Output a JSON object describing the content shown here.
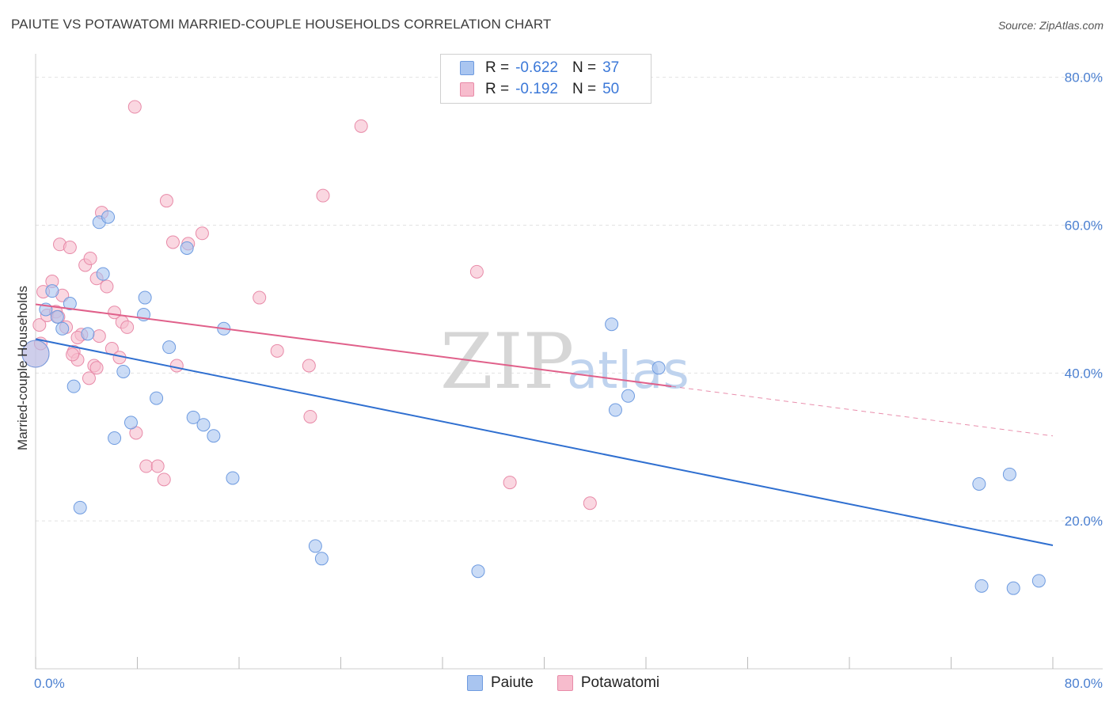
{
  "title": "PAIUTE VS POTAWATOMI MARRIED-COUPLE HOUSEHOLDS CORRELATION CHART",
  "source": "Source: ZipAtlas.com",
  "watermark": {
    "zip": "ZIP",
    "atlas": "atlas"
  },
  "legend": {
    "rows": [
      {
        "r_label": "R =",
        "r_value": "-0.622",
        "n_label": "N =",
        "n_value": "37",
        "color": "#a9c5f0",
        "border": "#6e9be0"
      },
      {
        "r_label": "R =",
        "r_value": "-0.192",
        "n_label": "N =",
        "n_value": "50",
        "color": "#f7bccd",
        "border": "#e88aa8"
      }
    ]
  },
  "bottom_legend": [
    {
      "label": "Paiute",
      "color": "#a9c5f0",
      "border": "#6e9be0"
    },
    {
      "label": "Potawatomi",
      "color": "#f7bccd",
      "border": "#e88aa8"
    }
  ],
  "chart_data": {
    "type": "scatter",
    "title": "PAIUTE VS POTAWATOMI MARRIED-COUPLE HOUSEHOLDS CORRELATION CHART",
    "xlabel": "",
    "ylabel": "Married-couple Households",
    "xlim": [
      0,
      80
    ],
    "ylim": [
      0,
      82
    ],
    "x_tick_labels": [
      "0.0%",
      "80.0%"
    ],
    "y_ticks": [
      20,
      40,
      60,
      80
    ],
    "y_tick_labels": [
      "20.0%",
      "40.0%",
      "60.0%",
      "80.0%"
    ],
    "grid": true,
    "series": [
      {
        "name": "Paiute",
        "color": "#a9c5f0",
        "edge": "#6e9be0",
        "line_color": "#2f6fd0",
        "trend": {
          "x": [
            0,
            80
          ],
          "y": [
            44.6,
            16.7
          ]
        },
        "points": [
          [
            0.0,
            42.6
          ],
          [
            0.8,
            48.6
          ],
          [
            1.3,
            51.1
          ],
          [
            1.7,
            47.6
          ],
          [
            2.1,
            46.0
          ],
          [
            2.7,
            49.4
          ],
          [
            3.0,
            38.2
          ],
          [
            3.5,
            21.8
          ],
          [
            4.1,
            45.3
          ],
          [
            5.0,
            60.4
          ],
          [
            5.3,
            53.4
          ],
          [
            5.7,
            61.1
          ],
          [
            6.2,
            31.2
          ],
          [
            6.9,
            40.2
          ],
          [
            7.5,
            33.3
          ],
          [
            8.5,
            47.9
          ],
          [
            8.6,
            50.2
          ],
          [
            9.5,
            36.6
          ],
          [
            10.5,
            43.5
          ],
          [
            11.9,
            56.9
          ],
          [
            12.4,
            34.0
          ],
          [
            13.2,
            33.0
          ],
          [
            14.0,
            31.5
          ],
          [
            14.8,
            46.0
          ],
          [
            15.5,
            25.8
          ],
          [
            22.0,
            16.6
          ],
          [
            22.5,
            14.9
          ],
          [
            34.8,
            13.2
          ],
          [
            45.3,
            46.6
          ],
          [
            45.6,
            35.0
          ],
          [
            46.6,
            36.9
          ],
          [
            49.0,
            40.7
          ],
          [
            74.2,
            25.0
          ],
          [
            74.4,
            11.2
          ],
          [
            76.6,
            26.3
          ],
          [
            76.9,
            10.9
          ],
          [
            78.9,
            11.9
          ]
        ]
      },
      {
        "name": "Potawatomi",
        "color": "#f7bccd",
        "edge": "#e88aa8",
        "line_color": "#e0608a",
        "trend": {
          "x": [
            0,
            50
          ],
          "y": [
            49.3,
            38.2
          ]
        },
        "trend_dashed": {
          "x": [
            50,
            80
          ],
          "y": [
            38.2,
            31.5
          ]
        },
        "points": [
          [
            0.0,
            42.6
          ],
          [
            0.3,
            46.5
          ],
          [
            0.6,
            51.0
          ],
          [
            0.9,
            47.8
          ],
          [
            1.3,
            52.4
          ],
          [
            1.6,
            48.3
          ],
          [
            1.9,
            57.4
          ],
          [
            2.1,
            50.5
          ],
          [
            2.4,
            46.2
          ],
          [
            2.7,
            57.0
          ],
          [
            3.0,
            42.9
          ],
          [
            3.3,
            41.8
          ],
          [
            3.6,
            45.2
          ],
          [
            3.9,
            54.6
          ],
          [
            4.2,
            39.3
          ],
          [
            4.3,
            55.5
          ],
          [
            4.6,
            41.0
          ],
          [
            4.8,
            52.8
          ],
          [
            5.0,
            45.0
          ],
          [
            5.2,
            61.7
          ],
          [
            5.6,
            51.7
          ],
          [
            6.0,
            43.3
          ],
          [
            6.2,
            48.2
          ],
          [
            6.8,
            46.9
          ],
          [
            7.2,
            46.2
          ],
          [
            7.9,
            31.9
          ],
          [
            7.8,
            76.0
          ],
          [
            8.7,
            27.4
          ],
          [
            9.6,
            27.4
          ],
          [
            10.1,
            25.6
          ],
          [
            10.3,
            63.3
          ],
          [
            10.8,
            57.7
          ],
          [
            11.1,
            41.0
          ],
          [
            12.0,
            57.5
          ],
          [
            13.1,
            58.9
          ],
          [
            17.6,
            50.2
          ],
          [
            19.0,
            43.0
          ],
          [
            21.5,
            41.0
          ],
          [
            21.6,
            34.1
          ],
          [
            22.6,
            64.0
          ],
          [
            25.6,
            73.4
          ],
          [
            34.7,
            53.7
          ],
          [
            37.3,
            25.2
          ],
          [
            43.6,
            22.4
          ],
          [
            2.9,
            42.5
          ],
          [
            1.8,
            47.6
          ],
          [
            4.8,
            40.7
          ],
          [
            0.4,
            44.0
          ],
          [
            3.3,
            44.8
          ],
          [
            6.6,
            42.1
          ]
        ]
      }
    ]
  }
}
